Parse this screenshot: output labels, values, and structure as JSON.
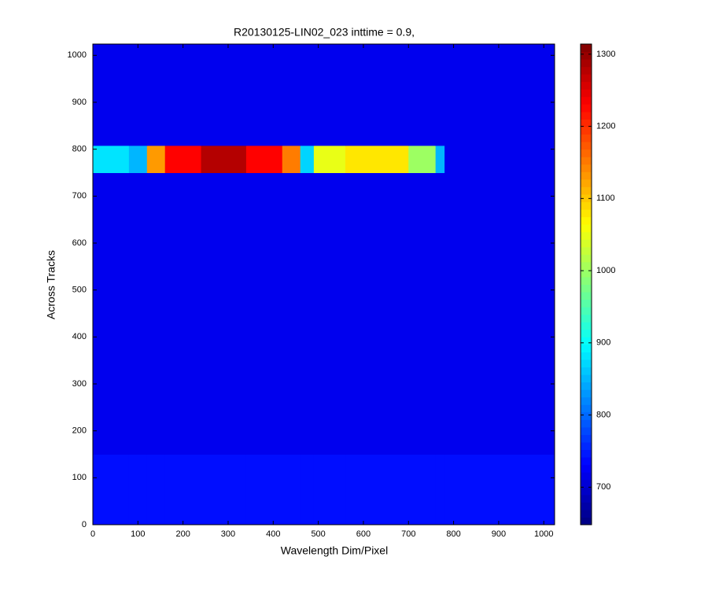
{
  "chart_data": {
    "type": "heatmap",
    "title": "R20130125-LIN02_023 inttime = 0.9,",
    "x_label": "Wavelength Dim/Pixel",
    "y_label": "Across Tracks",
    "colormap": "jet",
    "x_edges": [
      0,
      80,
      120,
      160,
      240,
      340,
      420,
      460,
      490,
      560,
      700,
      760,
      780,
      1024
    ],
    "y_edges": [
      0,
      150,
      750,
      808,
      1024
    ],
    "z": [
      [
        740,
        740,
        740,
        740,
        740,
        740,
        740,
        740,
        740,
        740,
        740,
        740,
        740
      ],
      [
        720,
        720,
        720,
        720,
        720,
        720,
        720,
        720,
        720,
        720,
        720,
        720,
        720
      ],
      [
        880,
        850,
        1130,
        1230,
        1280,
        1230,
        1150,
        870,
        1050,
        1080,
        1000,
        850,
        720
      ],
      [
        720,
        720,
        720,
        720,
        720,
        720,
        720,
        720,
        720,
        720,
        720,
        720,
        720
      ]
    ],
    "xlim": [
      0,
      1024
    ],
    "ylim": [
      0,
      1024
    ],
    "xticks": [
      0,
      100,
      200,
      300,
      400,
      500,
      600,
      700,
      800,
      900,
      1000
    ],
    "yticks": [
      0,
      100,
      200,
      300,
      400,
      500,
      600,
      700,
      800,
      900,
      1000
    ],
    "clim": [
      648,
      1314
    ],
    "cticks": [
      700,
      800,
      900,
      1000,
      1100,
      1200,
      1300
    ],
    "grid": false
  }
}
